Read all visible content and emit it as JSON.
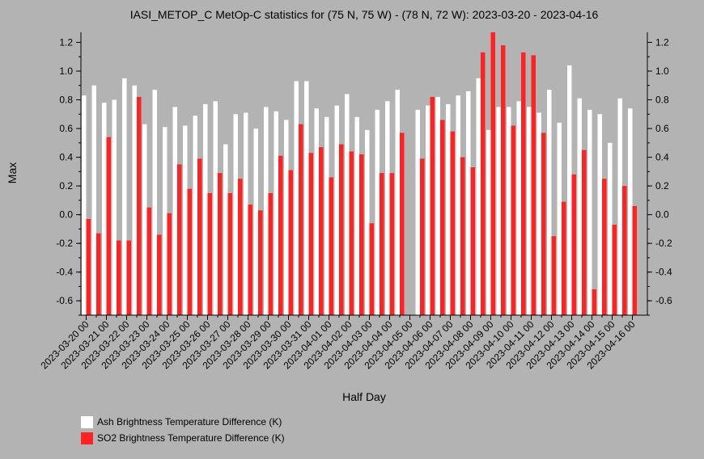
{
  "chart_data": {
    "type": "bar",
    "title": "IASI_METOP_C MetOp-C statistics for (75 N, 75 W) - (78 N, 72 W): 2023-03-20 - 2023-04-16",
    "xlabel": "Half Day",
    "ylabel": "Max",
    "ylim": [
      -0.7,
      1.27
    ],
    "yticks": [
      "-0.6",
      "-0.4",
      "-0.2",
      "0.0",
      "0.2",
      "0.4",
      "0.6",
      "0.8",
      "1.0",
      "1.2"
    ],
    "grid": false,
    "legend_position": "bottom-left",
    "x_tick_labels": [
      "2023-03-20 00",
      "2023-03-21 00",
      "2023-03-22 00",
      "2023-03-23 00",
      "2023-03-24 00",
      "2023-03-25 00",
      "2023-03-26 00",
      "2023-03-27 00",
      "2023-03-28 00",
      "2023-03-29 00",
      "2023-03-30 00",
      "2023-03-31 00",
      "2023-04-01 00",
      "2023-04-02 00",
      "2023-04-03 00",
      "2023-04-04 00",
      "2023-04-05 00",
      "2023-04-06 00",
      "2023-04-07 00",
      "2023-04-08 00",
      "2023-04-09 00",
      "2023-04-10 00",
      "2023-04-11 00",
      "2023-04-12 00",
      "2023-04-13 00",
      "2023-04-14 00",
      "2023-04-15 00",
      "2023-04-16 00"
    ],
    "series": [
      {
        "name": "Ash Brightness Temperature Difference (K)",
        "color": "#ffffff",
        "values": [
          0.83,
          0.9,
          0.78,
          0.8,
          0.95,
          0.9,
          0.63,
          0.87,
          0.61,
          0.75,
          0.62,
          0.69,
          0.77,
          0.79,
          0.49,
          0.7,
          0.71,
          0.6,
          0.75,
          0.72,
          0.66,
          0.93,
          0.93,
          0.74,
          0.68,
          0.76,
          0.84,
          0.68,
          0.59,
          0.73,
          0.79,
          0.87,
          null,
          0.73,
          0.76,
          0.82,
          0.77,
          0.83,
          0.86,
          0.95,
          0.59,
          0.75,
          0.75,
          0.79,
          0.75,
          0.71,
          0.87,
          0.64,
          1.04,
          0.81,
          0.73,
          0.7,
          0.5,
          0.81,
          0.74,
          null
        ]
      },
      {
        "name": "SO2 Brightness Temperature Difference (K)",
        "color": "#ff2222",
        "values": [
          -0.03,
          -0.13,
          0.54,
          -0.18,
          -0.18,
          0.82,
          0.05,
          -0.14,
          0.01,
          0.35,
          0.18,
          0.39,
          0.15,
          0.29,
          0.15,
          0.25,
          0.07,
          0.03,
          0.15,
          0.41,
          0.31,
          0.63,
          0.43,
          0.47,
          0.26,
          0.49,
          0.44,
          0.42,
          -0.06,
          0.29,
          0.29,
          0.57,
          null,
          0.39,
          0.82,
          0.66,
          0.58,
          0.4,
          0.33,
          1.13,
          1.27,
          1.18,
          0.62,
          1.13,
          1.11,
          0.57,
          -0.15,
          0.09,
          0.28,
          0.45,
          -0.52,
          0.25,
          -0.07,
          0.2,
          0.06,
          null
        ]
      }
    ]
  }
}
